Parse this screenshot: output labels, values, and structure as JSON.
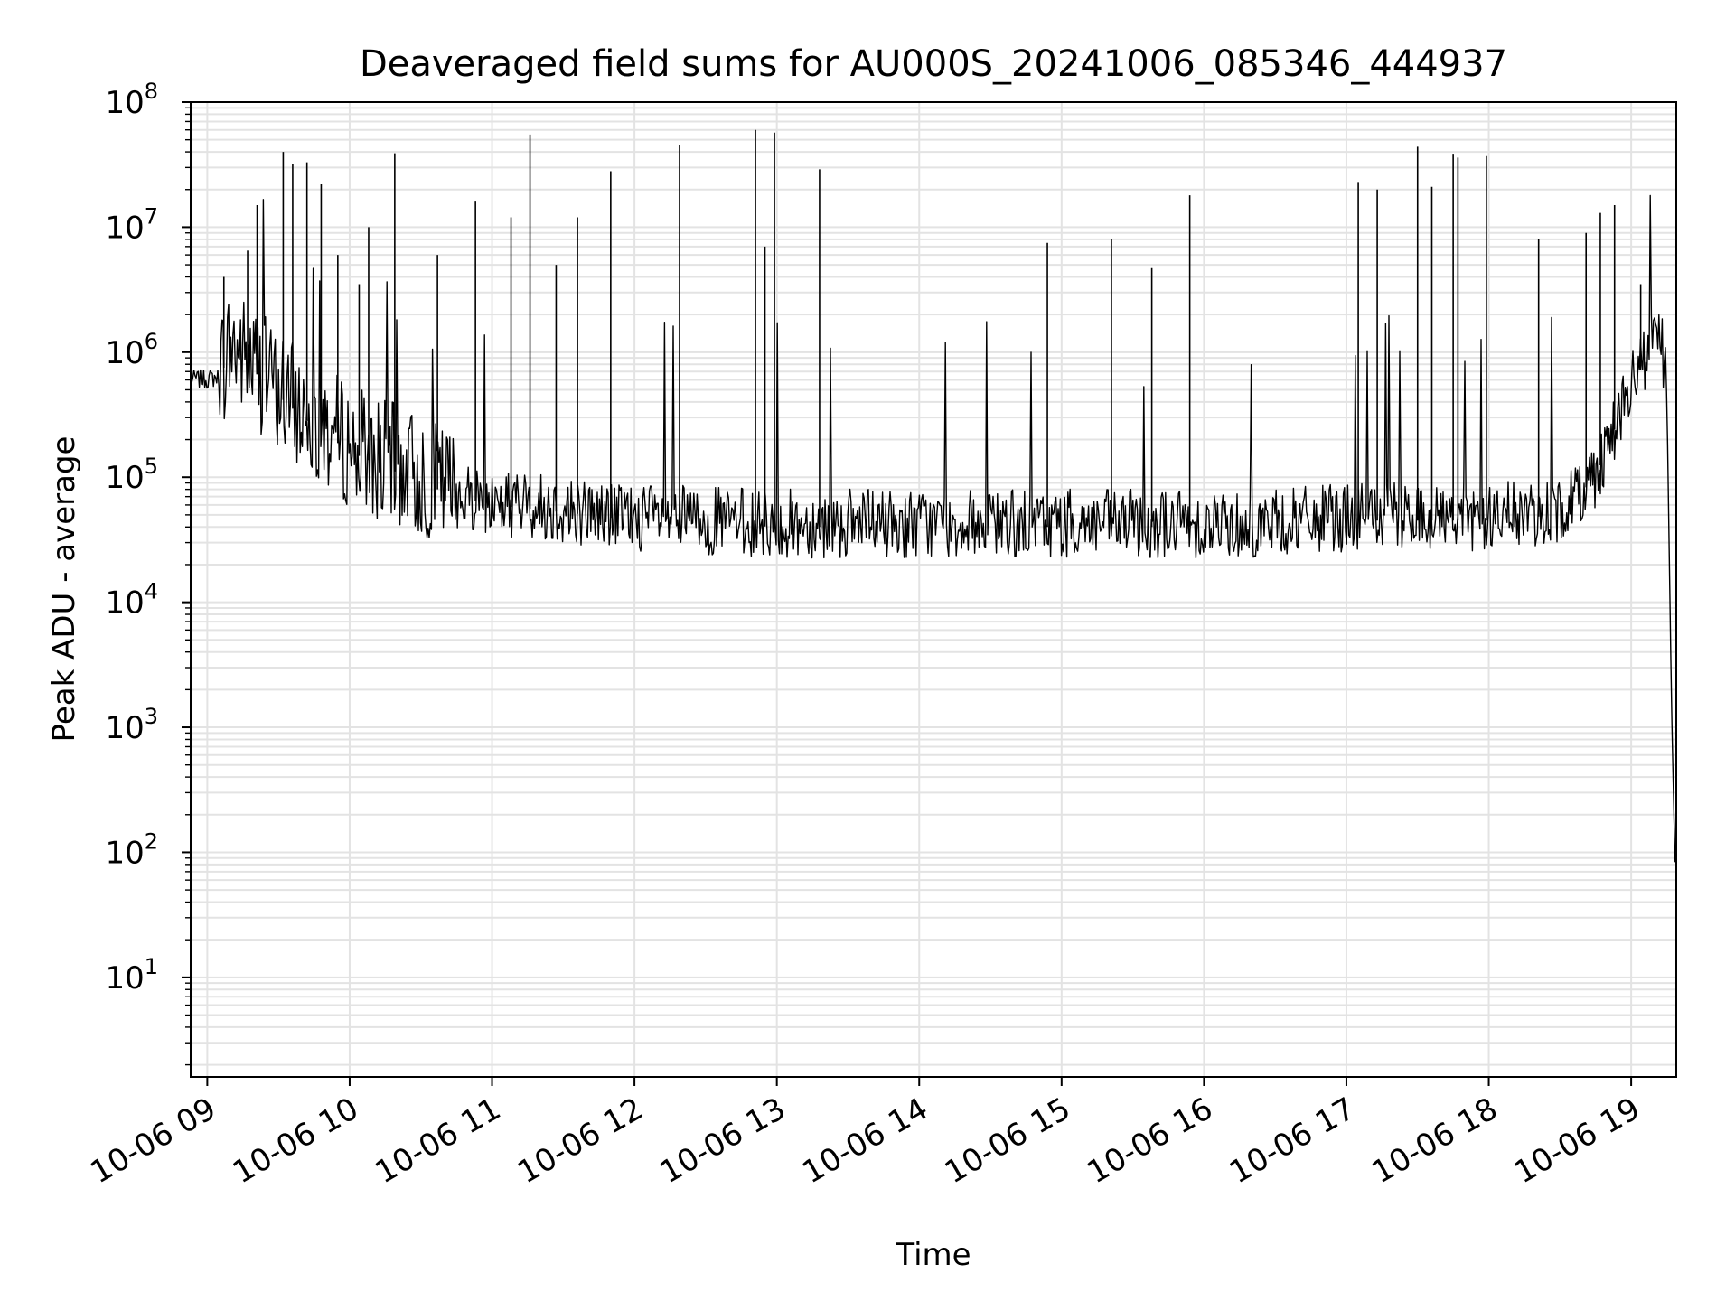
{
  "chart_data": {
    "type": "line",
    "title": "Deaveraged field sums for AU000S_20241006_085346_444937",
    "xlabel": "Time",
    "ylabel": "Peak ADU - average",
    "yscale": "log",
    "ylim": [
      1.6,
      100000000
    ],
    "xlim": [
      "2024-10-06 08:53",
      "2024-10-06 19:19"
    ],
    "grid": true,
    "legend": "none",
    "line_color": "#000000",
    "x_ticks": [
      "10-06 09",
      "10-06 10",
      "10-06 11",
      "10-06 12",
      "10-06 13",
      "10-06 14",
      "10-06 15",
      "10-06 16",
      "10-06 17",
      "10-06 18",
      "10-06 19"
    ],
    "y_ticks": [
      {
        "value": 10,
        "base": "10",
        "exp": "1"
      },
      {
        "value": 100,
        "base": "10",
        "exp": "2"
      },
      {
        "value": 1000,
        "base": "10",
        "exp": "3"
      },
      {
        "value": 10000,
        "base": "10",
        "exp": "4"
      },
      {
        "value": 100000,
        "base": "10",
        "exp": "5"
      },
      {
        "value": 1000000,
        "base": "10",
        "exp": "6"
      },
      {
        "value": 10000000,
        "base": "10",
        "exp": "7"
      },
      {
        "value": 100000000,
        "base": "10",
        "exp": "8"
      }
    ],
    "series": [
      {
        "x": [
          "2024-10-06 08:53",
          "2024-10-06 09:00",
          "2024-10-06 09:05",
          "2024-10-06 09:10",
          "2024-10-06 09:20",
          "2024-10-06 09:30",
          "2024-10-06 09:40",
          "2024-10-06 09:50",
          "2024-10-06 10:00",
          "2024-10-06 10:15",
          "2024-10-06 10:30",
          "2024-10-06 10:45",
          "2024-10-06 11:00",
          "2024-10-06 11:20",
          "2024-10-06 11:40",
          "2024-10-06 12:00",
          "2024-10-06 12:30",
          "2024-10-06 13:00",
          "2024-10-06 13:30",
          "2024-10-06 14:00",
          "2024-10-06 14:30",
          "2024-10-06 15:00",
          "2024-10-06 15:30",
          "2024-10-06 16:00",
          "2024-10-06 16:30",
          "2024-10-06 17:00",
          "2024-10-06 17:30",
          "2024-10-06 18:00",
          "2024-10-06 18:30",
          "2024-10-06 18:45",
          "2024-10-06 18:55",
          "2024-10-06 19:05",
          "2024-10-06 19:12",
          "2024-10-06 19:15",
          "2024-10-06 19:17",
          "2024-10-06 19:18",
          "2024-10-06 19:19"
        ],
        "y": [
          600000,
          600000,
          620000,
          1000000,
          700000,
          450000,
          300000,
          220000,
          160000,
          120000,
          90000,
          70000,
          60000,
          55000,
          50000,
          45000,
          42000,
          40000,
          40000,
          40000,
          40000,
          40000,
          40000,
          40000,
          40000,
          45000,
          45000,
          45000,
          50000,
          100000,
          300000,
          800000,
          1300000,
          500000,
          1500,
          200,
          40
        ]
      }
    ],
    "spikes": [
      {
        "x": "2024-10-06 09:07",
        "y": 4000000
      },
      {
        "x": "2024-10-06 09:17",
        "y": 6500000
      },
      {
        "x": "2024-10-06 09:21",
        "y": 15000000
      },
      {
        "x": "2024-10-06 09:32",
        "y": 40000000
      },
      {
        "x": "2024-10-06 09:36",
        "y": 32000000
      },
      {
        "x": "2024-10-06 09:42",
        "y": 33000000
      },
      {
        "x": "2024-10-06 09:48",
        "y": 22000000
      },
      {
        "x": "2024-10-06 09:55",
        "y": 6000000
      },
      {
        "x": "2024-10-06 10:04",
        "y": 3500000
      },
      {
        "x": "2024-10-06 10:08",
        "y": 10000000
      },
      {
        "x": "2024-10-06 10:19",
        "y": 39000000
      },
      {
        "x": "2024-10-06 10:37",
        "y": 6000000
      },
      {
        "x": "2024-10-06 10:53",
        "y": 16000000
      },
      {
        "x": "2024-10-06 11:08",
        "y": 12000000
      },
      {
        "x": "2024-10-06 11:16",
        "y": 55000000
      },
      {
        "x": "2024-10-06 11:27",
        "y": 5000000
      },
      {
        "x": "2024-10-06 11:36",
        "y": 12000000
      },
      {
        "x": "2024-10-06 11:50",
        "y": 28000000
      },
      {
        "x": "2024-10-06 12:19",
        "y": 45000000
      },
      {
        "x": "2024-10-06 12:51",
        "y": 60000000
      },
      {
        "x": "2024-10-06 12:55",
        "y": 7000000
      },
      {
        "x": "2024-10-06 12:59",
        "y": 57000000
      },
      {
        "x": "2024-10-06 13:18",
        "y": 29000000
      },
      {
        "x": "2024-10-06 14:54",
        "y": 7500000
      },
      {
        "x": "2024-10-06 15:21",
        "y": 8000000
      },
      {
        "x": "2024-10-06 15:38",
        "y": 4700000
      },
      {
        "x": "2024-10-06 15:54",
        "y": 18000000
      },
      {
        "x": "2024-10-06 17:05",
        "y": 23000000
      },
      {
        "x": "2024-10-06 17:13",
        "y": 20000000
      },
      {
        "x": "2024-10-06 17:30",
        "y": 44000000
      },
      {
        "x": "2024-10-06 17:36",
        "y": 21000000
      },
      {
        "x": "2024-10-06 17:45",
        "y": 38000000
      },
      {
        "x": "2024-10-06 17:47",
        "y": 36000000
      },
      {
        "x": "2024-10-06 17:59",
        "y": 37000000
      },
      {
        "x": "2024-10-06 18:21",
        "y": 8000000
      },
      {
        "x": "2024-10-06 18:41",
        "y": 9000000
      },
      {
        "x": "2024-10-06 18:47",
        "y": 13000000
      },
      {
        "x": "2024-10-06 18:53",
        "y": 15000000
      },
      {
        "x": "2024-10-06 19:04",
        "y": 3500000
      }
    ]
  }
}
